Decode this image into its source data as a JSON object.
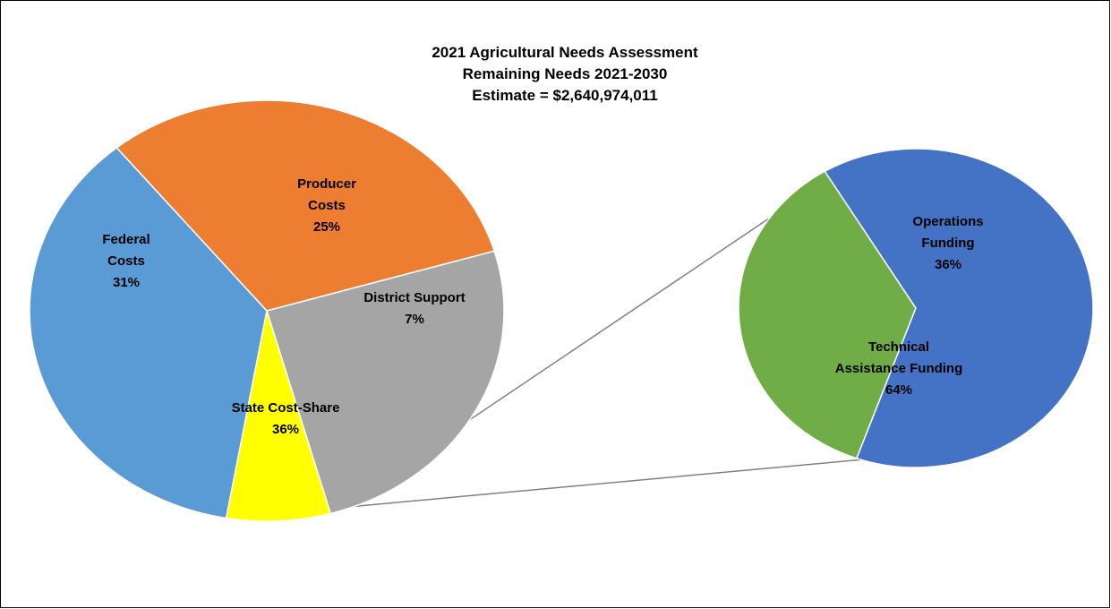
{
  "chart_data": {
    "type": "pie-of-pie",
    "title": [
      "2021 Agricultural Needs Assessment",
      "Remaining Needs 2021-2030",
      "Estimate = $2,640,974,011"
    ],
    "main_pie": {
      "slices": [
        {
          "label": [
            "Producer",
            "Costs"
          ],
          "pct_text": "25%",
          "value": 25,
          "color": "#a5a5a5"
        },
        {
          "label": [
            "District Support"
          ],
          "pct_text": "7%",
          "value": 7,
          "color": "#ffff00"
        },
        {
          "label": [
            "State Cost-Share"
          ],
          "pct_text": "36%",
          "value": 36,
          "color": "#5b9bd5"
        },
        {
          "label": [
            "Federal",
            "Costs"
          ],
          "pct_text": "31%",
          "value": 31,
          "color": "#ed7d31"
        }
      ]
    },
    "secondary_pie": {
      "breakdown_of": "District Support",
      "slices": [
        {
          "label": [
            "Operations",
            "Funding"
          ],
          "pct_text": "36%",
          "value": 36,
          "color": "#70ad47"
        },
        {
          "label": [
            "Technical",
            "Assistance Funding"
          ],
          "pct_text": "64%",
          "value": 64,
          "color": "#4472c4"
        }
      ]
    },
    "connector_color": "#808080"
  }
}
